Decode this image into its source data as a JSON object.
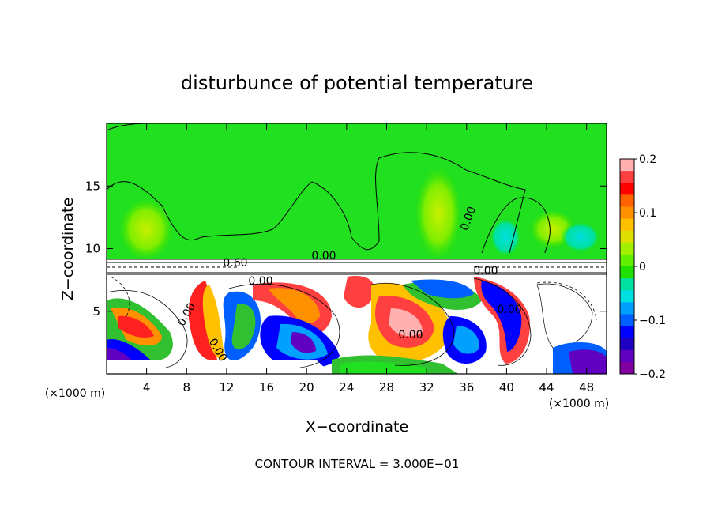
{
  "chart_data": {
    "type": "heatmap",
    "title": "disturbunce of potential temperature",
    "xlabel": "X−coordinate",
    "ylabel": "Z−coordinate",
    "x_unit": "(×1000 m)",
    "x_unit_right": "(×1000 m)",
    "footer": "CONTOUR INTERVAL = 3.000E−01",
    "x_ticks": [
      4,
      8,
      12,
      16,
      20,
      24,
      28,
      32,
      36,
      40,
      44,
      48
    ],
    "y_ticks": [
      5,
      10,
      15
    ],
    "xlim": [
      0,
      50
    ],
    "ylim": [
      0,
      20
    ],
    "colorbar": {
      "ticks": [
        "0.2",
        "0.1",
        "0",
        "−0.1",
        "−0.2"
      ],
      "range": [
        -0.2,
        0.2
      ],
      "colors": [
        "#ffb0b0",
        "#ff4040",
        "#ff0000",
        "#ff6000",
        "#ff9000",
        "#ffc000",
        "#e0e000",
        "#a0f000",
        "#60f000",
        "#20e000",
        "#00e0a0",
        "#00e0e0",
        "#00a0ff",
        "#0060ff",
        "#0000ff",
        "#2000c0",
        "#6000c0",
        "#8000a0"
      ]
    },
    "contour_labels": [
      "0.60",
      "0.00",
      "0.00",
      "0.00",
      "0.00",
      "0.00",
      "0.00",
      "0.00",
      "0.00"
    ]
  }
}
